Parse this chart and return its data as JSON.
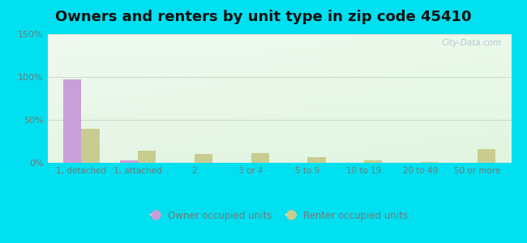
{
  "title": "Owners and renters by unit type in zip code 45410",
  "categories": [
    "1, detached",
    "1, attached",
    "2",
    "3 or 4",
    "5 to 9",
    "10 to 19",
    "20 to 49",
    "50 or more"
  ],
  "owner_values": [
    97,
    3,
    0,
    0,
    0,
    0,
    0,
    0
  ],
  "renter_values": [
    40,
    14,
    10,
    11,
    7,
    3,
    1,
    16
  ],
  "owner_color": "#c8a0d8",
  "renter_color": "#c8cc90",
  "background_outer": "#00e0f0",
  "ylim": [
    0,
    150
  ],
  "yticks": [
    0,
    50,
    100,
    150
  ],
  "ytick_labels": [
    "0%",
    "50%",
    "100%",
    "150%"
  ],
  "legend_owner": "Owner occupied units",
  "legend_renter": "Renter occupied units",
  "title_fontsize": 13,
  "watermark": "City-Data.com",
  "grid_color": "#ccddcc",
  "tick_color": "#777777"
}
